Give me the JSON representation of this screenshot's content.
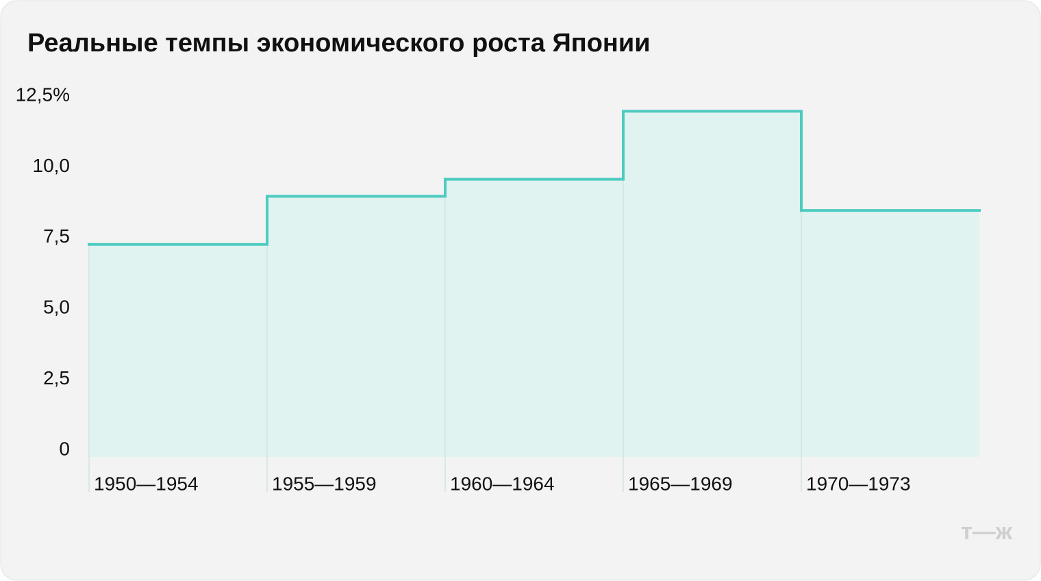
{
  "chart_data": {
    "type": "step",
    "title": "Реальные темпы экономического роста Японии",
    "categories": [
      "1950—1954",
      "1955—1959",
      "1960—1964",
      "1965—1969",
      "1970—1973"
    ],
    "values": [
      7.5,
      9.2,
      9.8,
      12.2,
      8.7
    ],
    "color": "#4ecbc0",
    "fill": "#e0f3f0",
    "ylim": [
      0,
      12.5
    ],
    "yticks": [
      0,
      {
        "value": 2.5,
        "label": "2,5"
      },
      {
        "value": 5,
        "label": "5,0"
      },
      {
        "value": 7.5,
        "label": "7,5"
      },
      {
        "value": 10,
        "label": "10,0"
      },
      {
        "value": 12.5,
        "label": "12,5%"
      }
    ],
    "grid": false
  },
  "logo": "т—ж"
}
